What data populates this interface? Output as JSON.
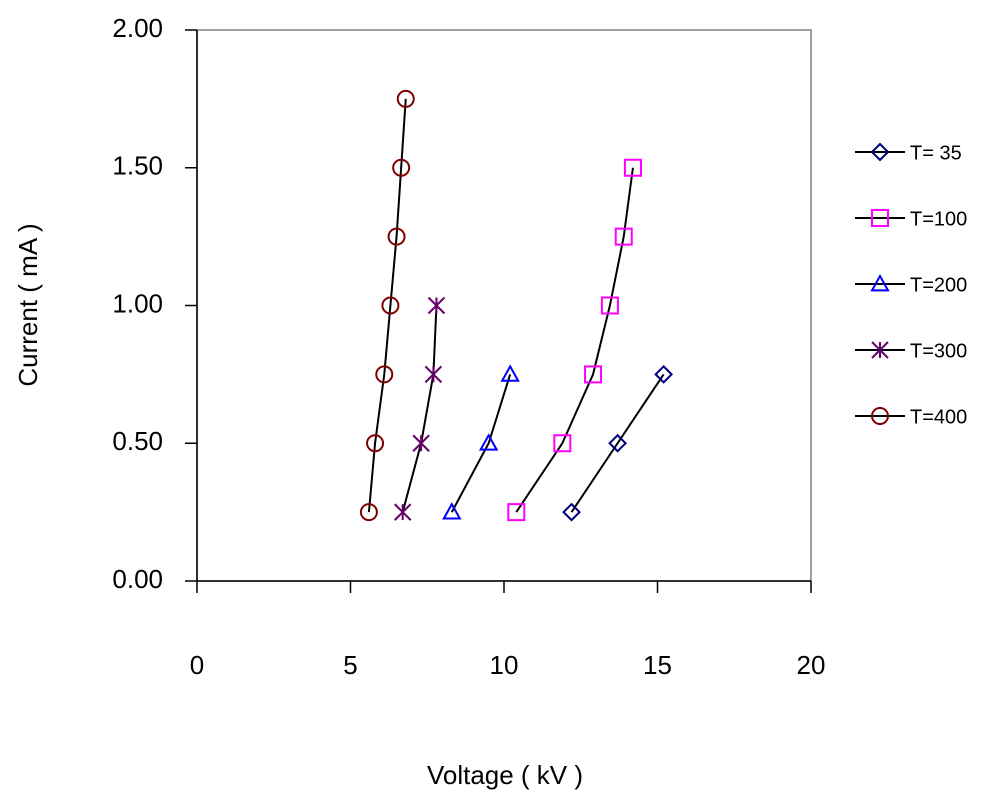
{
  "chart_data": {
    "type": "scatter",
    "x_label": "Voltage ( kV )",
    "y_label": "Current ( mA )",
    "xlim": [
      0,
      20
    ],
    "xticks": [
      0,
      5,
      10,
      15,
      20
    ],
    "ylim": [
      0,
      2
    ],
    "yticks": [
      {
        "value": 0,
        "label": "0.00"
      },
      {
        "value": 0.5,
        "label": "0.50"
      },
      {
        "value": 1,
        "label": "1.00"
      },
      {
        "value": 1.5,
        "label": "1.50"
      },
      {
        "value": 2,
        "label": "2.00"
      }
    ],
    "legend": "right",
    "line_color": "#000000",
    "series": [
      {
        "name": "T= 35",
        "color": "#000080",
        "marker": "diamond",
        "x": [
          12.2,
          13.7,
          15.2
        ],
        "values": [
          0.25,
          0.5,
          0.75
        ]
      },
      {
        "name": "T=100",
        "color": "#ff00ff",
        "marker": "square",
        "x": [
          10.4,
          11.9,
          12.9,
          13.45,
          13.9,
          14.2
        ],
        "values": [
          0.25,
          0.5,
          0.75,
          1,
          1.25,
          1.5
        ]
      },
      {
        "name": "T=200",
        "color": "#0000ff",
        "marker": "triangle",
        "x": [
          8.3,
          9.5,
          10.2
        ],
        "values": [
          0.25,
          0.5,
          0.75
        ]
      },
      {
        "name": "T=300",
        "color": "#660066",
        "marker": "star",
        "x": [
          6.7,
          7.3,
          7.7,
          7.8
        ],
        "values": [
          0.25,
          0.5,
          0.75,
          1
        ]
      },
      {
        "name": "T=400",
        "color": "#800000",
        "marker": "circle",
        "x": [
          5.6,
          5.8,
          6.1,
          6.3,
          6.5,
          6.65,
          6.8
        ],
        "values": [
          0.25,
          0.5,
          0.75,
          1,
          1.25,
          1.5,
          1.75
        ]
      }
    ]
  }
}
